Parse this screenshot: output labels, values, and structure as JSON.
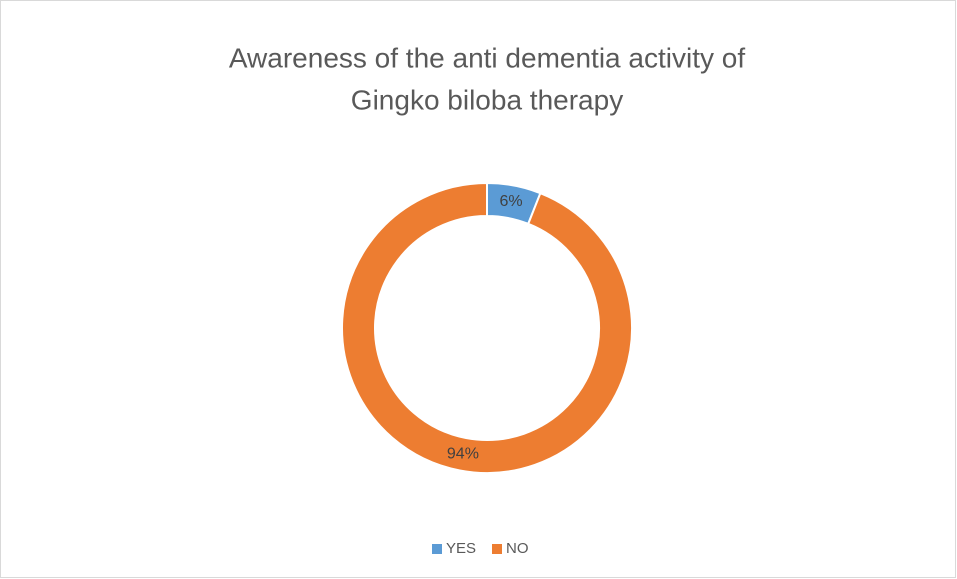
{
  "chart_data": {
    "type": "donut",
    "title": [
      "Awareness of the anti dementia activity of",
      "Gingko biloba therapy"
    ],
    "categories": [
      "YES",
      "NO"
    ],
    "values": [
      6,
      94
    ],
    "value_labels": [
      "6%",
      "94%"
    ],
    "colors": [
      "#5b9bd5",
      "#ed7d31"
    ],
    "legend": "bottom"
  }
}
